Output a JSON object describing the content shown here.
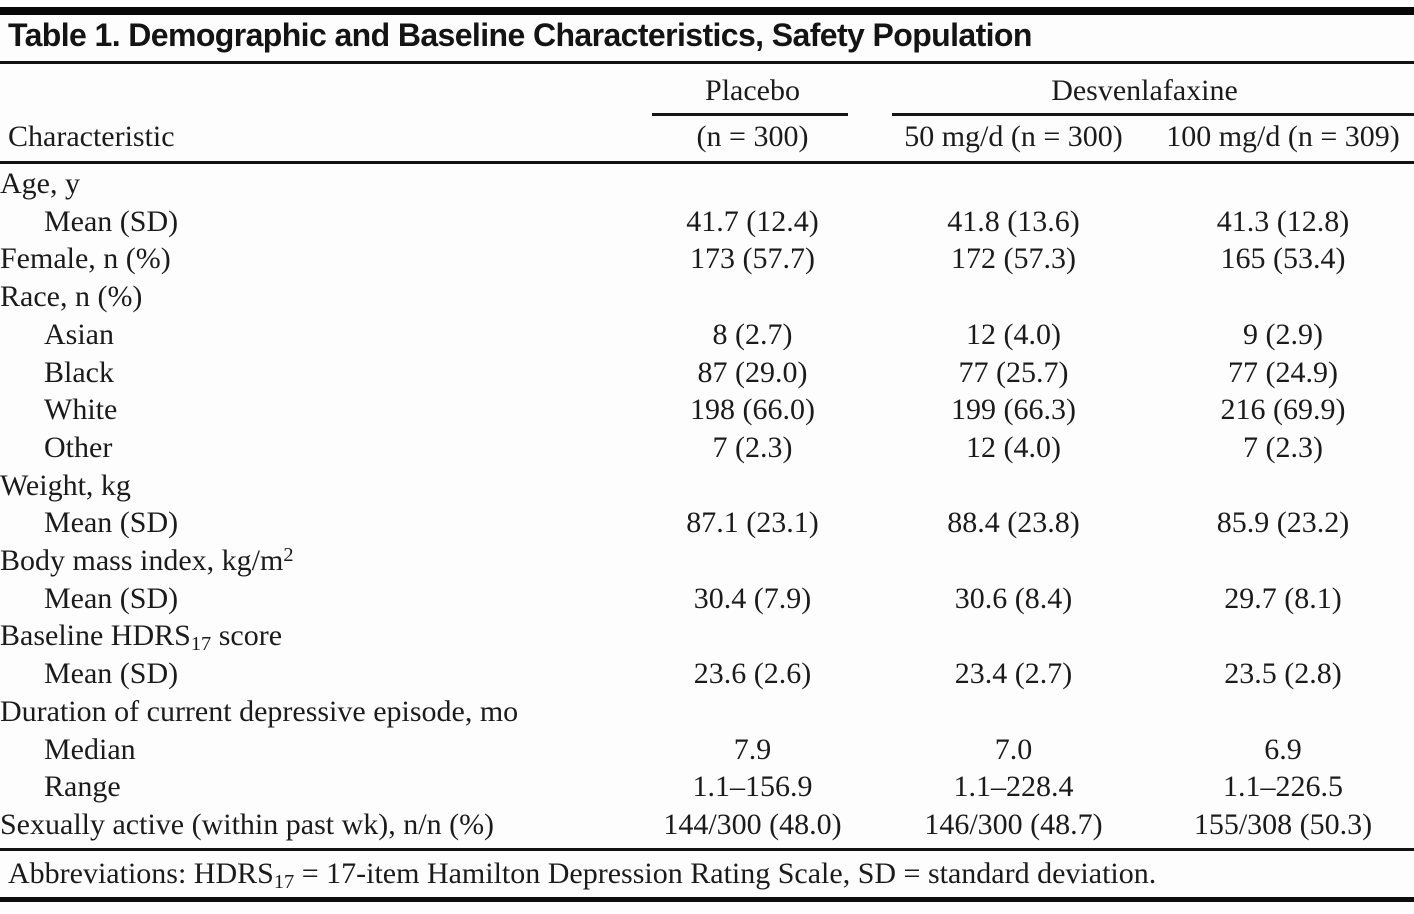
{
  "title": "Table 1. Demographic and Baseline Characteristics, Safety Population",
  "header": {
    "characteristic": "Characteristic",
    "placebo": "Placebo",
    "placebo_n": "(n = 300)",
    "group": "Desvenlafaxine",
    "dose50": "50 mg/d (n = 300)",
    "dose100": "100 mg/d (n = 309)"
  },
  "rows": [
    {
      "label": "Age, y",
      "indent": 0,
      "values": [
        "",
        "",
        ""
      ]
    },
    {
      "label": "Mean (SD)",
      "indent": 1,
      "values": [
        "41.7 (12.4)",
        "41.8 (13.6)",
        "41.3 (12.8)"
      ]
    },
    {
      "label": "Female, n (%)",
      "indent": 0,
      "values": [
        "173 (57.7)",
        "172 (57.3)",
        "165 (53.4)"
      ]
    },
    {
      "label": "Race, n (%)",
      "indent": 0,
      "values": [
        "",
        "",
        ""
      ]
    },
    {
      "label": "Asian",
      "indent": 1,
      "values": [
        "8 (2.7)",
        "12 (4.0)",
        "9 (2.9)"
      ]
    },
    {
      "label": "Black",
      "indent": 1,
      "values": [
        "87 (29.0)",
        "77 (25.7)",
        "77 (24.9)"
      ]
    },
    {
      "label": "White",
      "indent": 1,
      "values": [
        "198 (66.0)",
        "199 (66.3)",
        "216 (69.9)"
      ]
    },
    {
      "label": "Other",
      "indent": 1,
      "values": [
        "7 (2.3)",
        "12 (4.0)",
        "7 (2.3)"
      ]
    },
    {
      "label": "Weight, kg",
      "indent": 0,
      "values": [
        "",
        "",
        ""
      ]
    },
    {
      "label": "Mean (SD)",
      "indent": 1,
      "values": [
        "87.1 (23.1)",
        "88.4 (23.8)",
        "85.9 (23.2)"
      ]
    },
    {
      "label": "Body mass index, kg/m^{2}",
      "indent": 0,
      "values": [
        "",
        "",
        ""
      ]
    },
    {
      "label": "Mean (SD)",
      "indent": 1,
      "values": [
        "30.4 (7.9)",
        "30.6 (8.4)",
        "29.7 (8.1)"
      ]
    },
    {
      "label": "Baseline HDRS_{17} score",
      "indent": 0,
      "values": [
        "",
        "",
        ""
      ]
    },
    {
      "label": "Mean (SD)",
      "indent": 1,
      "values": [
        "23.6 (2.6)",
        "23.4 (2.7)",
        "23.5 (2.8)"
      ]
    },
    {
      "label": "Duration of current depressive episode, mo",
      "indent": 0,
      "values": [
        "",
        "",
        ""
      ]
    },
    {
      "label": "Median",
      "indent": 1,
      "values": [
        "7.9",
        "7.0",
        "6.9"
      ]
    },
    {
      "label": "Range",
      "indent": 1,
      "values": [
        "1.1–156.9",
        "1.1–228.4",
        "1.1–226.5"
      ]
    },
    {
      "label": "Sexually active (within past wk), n/n (%)",
      "indent": 0,
      "values": [
        "144/300 (48.0)",
        "146/300 (48.7)",
        "155/308 (50.3)"
      ]
    }
  ],
  "footnote": "Abbreviations: HDRS_{17} = 17-item Hamilton Depression Rating Scale, SD = standard deviation."
}
